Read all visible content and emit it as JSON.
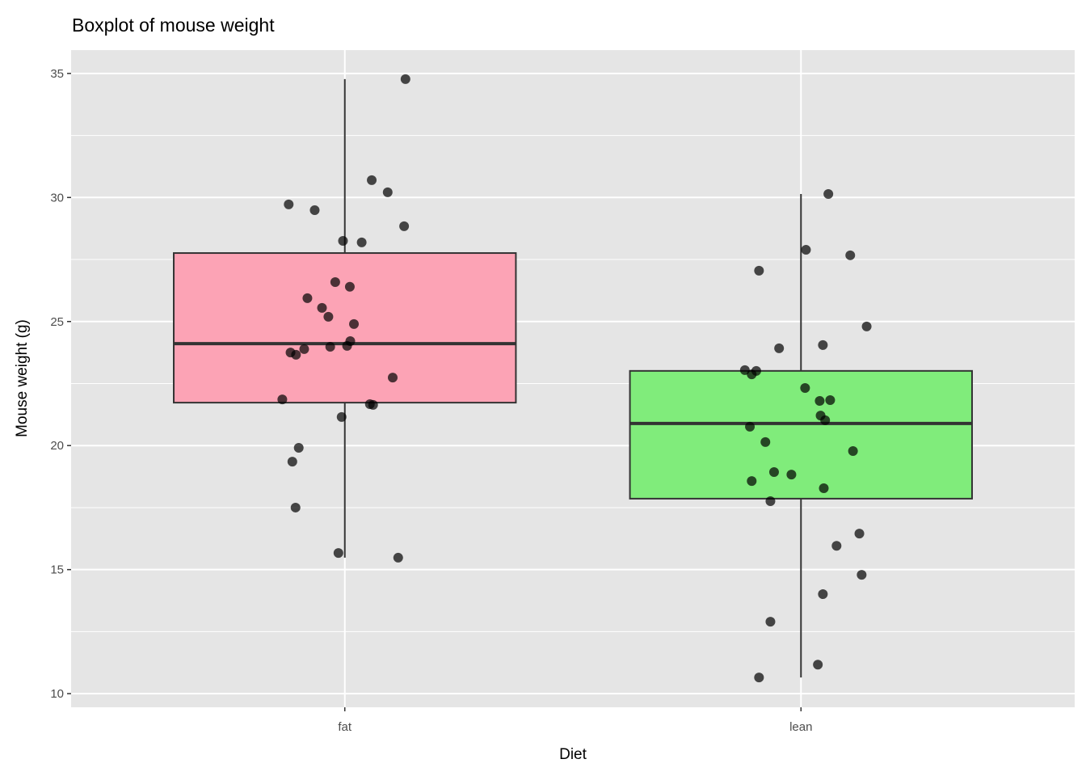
{
  "chart_data": {
    "type": "boxplot",
    "title": "Boxplot of mouse weight",
    "xlabel": "Diet",
    "ylabel": "Mouse weight (g)",
    "ylim": [
      9.45,
      35.94
    ],
    "xlim": [
      0.4,
      2.6
    ],
    "yticks": [
      10,
      15,
      20,
      25,
      30,
      35
    ],
    "yminor": [
      12.5,
      17.5,
      22.5,
      27.5,
      32.5
    ],
    "grid": true,
    "legend": "none",
    "box_width": 0.75,
    "categories": [
      {
        "name": "fat",
        "fill": "#FCA3B5",
        "stats": {
          "min": 15.48,
          "q1": 21.73,
          "median": 24.11,
          "q3": 27.76,
          "max": 34.77
        },
        "points": [
          [
            0.133,
            34.77
          ],
          [
            0.059,
            30.7
          ],
          [
            0.094,
            30.21
          ],
          [
            -0.123,
            29.72
          ],
          [
            -0.066,
            29.49
          ],
          [
            0.13,
            28.84
          ],
          [
            -0.004,
            28.25
          ],
          [
            0.037,
            28.19
          ],
          [
            -0.021,
            26.59
          ],
          [
            0.011,
            26.4
          ],
          [
            -0.082,
            25.94
          ],
          [
            -0.05,
            25.55
          ],
          [
            -0.036,
            25.19
          ],
          [
            0.02,
            24.9
          ],
          [
            0.012,
            24.21
          ],
          [
            -0.032,
            23.98
          ],
          [
            0.005,
            24.02
          ],
          [
            -0.089,
            23.89
          ],
          [
            -0.119,
            23.75
          ],
          [
            -0.107,
            23.66
          ],
          [
            0.105,
            22.74
          ],
          [
            -0.137,
            21.86
          ],
          [
            0.055,
            21.67
          ],
          [
            0.062,
            21.64
          ],
          [
            -0.007,
            21.15
          ],
          [
            -0.101,
            19.91
          ],
          [
            -0.115,
            19.35
          ],
          [
            -0.108,
            17.5
          ],
          [
            -0.014,
            15.67
          ],
          [
            0.117,
            15.48
          ]
        ]
      },
      {
        "name": "lean",
        "fill": "#80EC7B",
        "stats": {
          "min": 10.65,
          "q1": 17.86,
          "median": 20.89,
          "q3": 23.01,
          "max": 30.14
        },
        "points": [
          [
            0.06,
            30.14
          ],
          [
            0.011,
            27.89
          ],
          [
            0.108,
            27.67
          ],
          [
            -0.092,
            27.05
          ],
          [
            0.144,
            24.8
          ],
          [
            -0.048,
            23.92
          ],
          [
            0.048,
            24.05
          ],
          [
            -0.123,
            23.04
          ],
          [
            -0.098,
            23.01
          ],
          [
            -0.108,
            22.87
          ],
          [
            0.009,
            22.32
          ],
          [
            0.041,
            21.8
          ],
          [
            0.064,
            21.83
          ],
          [
            0.043,
            21.21
          ],
          [
            0.053,
            21.02
          ],
          [
            -0.112,
            20.76
          ],
          [
            -0.078,
            20.14
          ],
          [
            0.114,
            19.78
          ],
          [
            -0.059,
            18.93
          ],
          [
            -0.021,
            18.83
          ],
          [
            -0.108,
            18.57
          ],
          [
            0.05,
            18.28
          ],
          [
            -0.067,
            17.76
          ],
          [
            0.128,
            16.45
          ],
          [
            0.078,
            15.96
          ],
          [
            0.133,
            14.79
          ],
          [
            0.048,
            14.01
          ],
          [
            -0.067,
            12.9
          ],
          [
            0.037,
            11.17
          ],
          [
            -0.092,
            10.65
          ]
        ]
      }
    ]
  }
}
